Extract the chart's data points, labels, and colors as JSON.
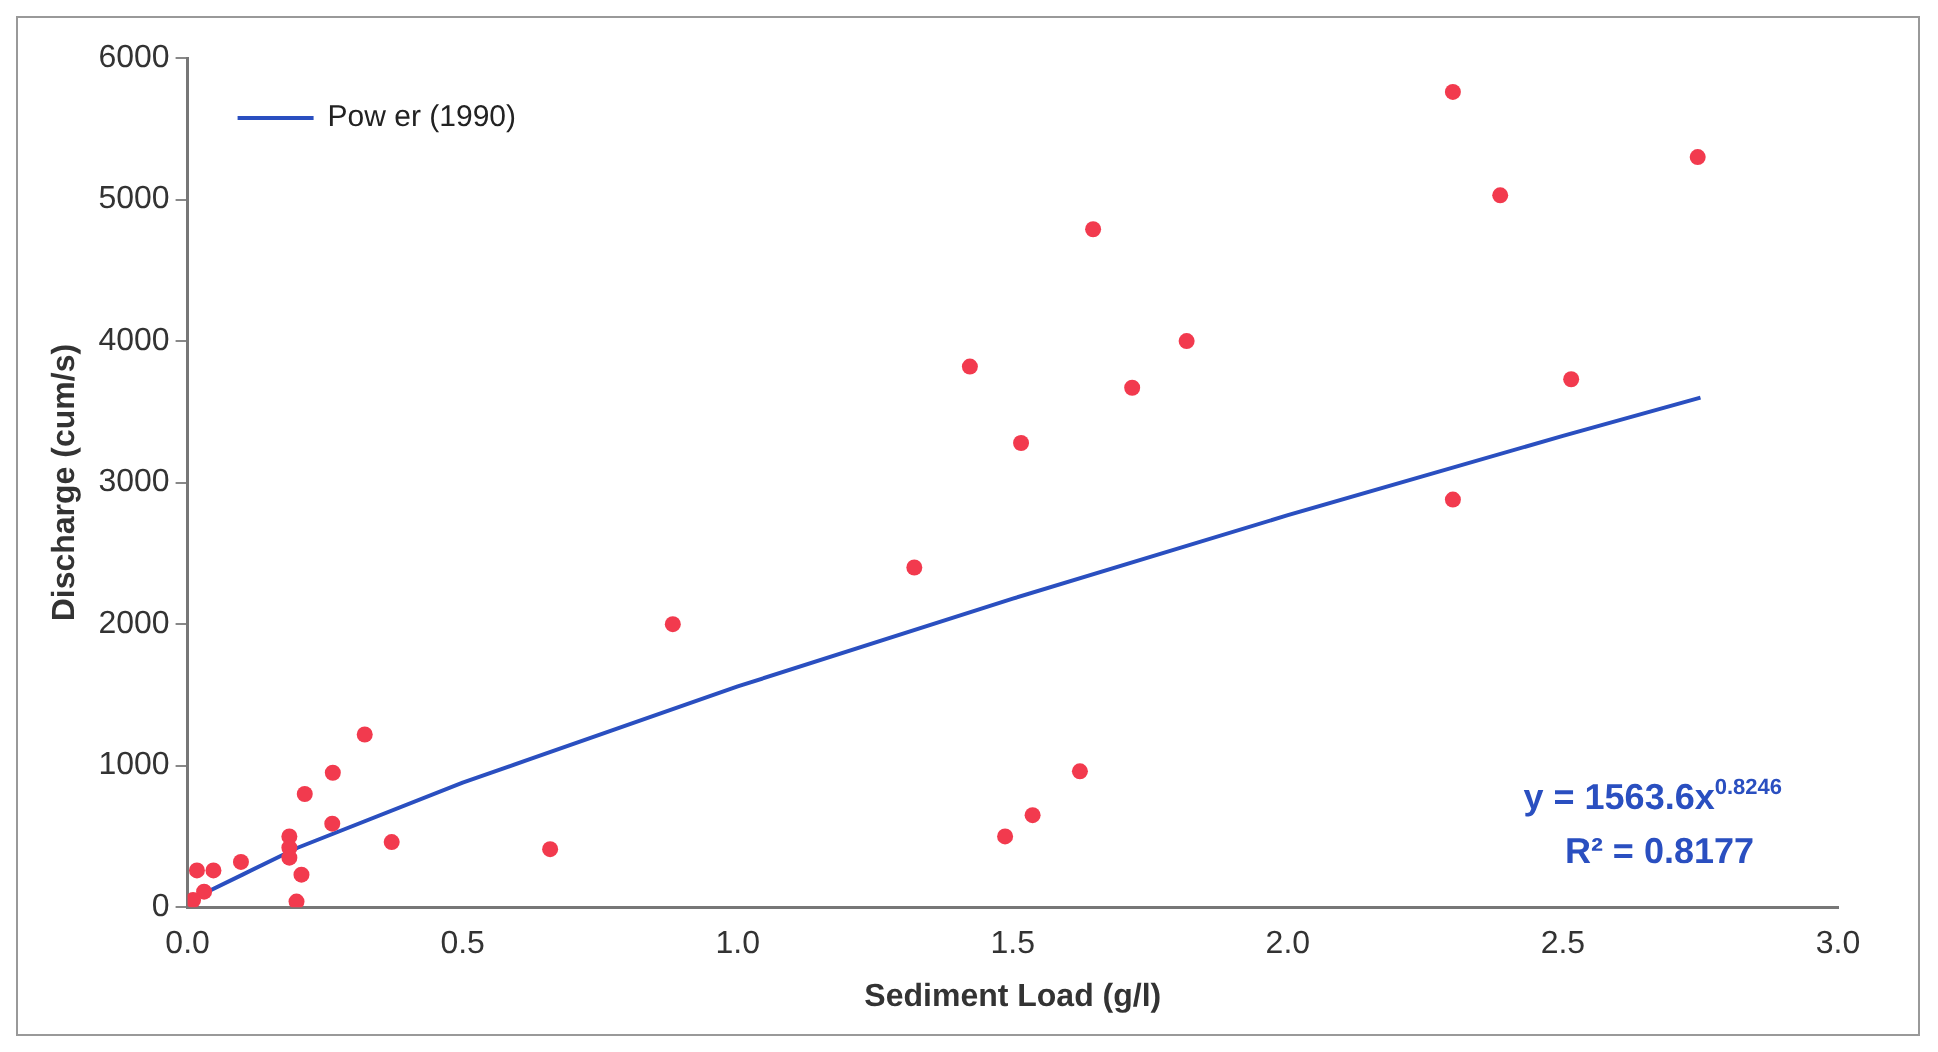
{
  "chart_data": {
    "type": "scatter",
    "xlabel": "Sediment Load (g/l)",
    "ylabel": "Discharge (cum/s)",
    "xlim": [
      0,
      3
    ],
    "xticks": [
      {
        "value": 0,
        "label": "0.0"
      },
      {
        "value": 0.5,
        "label": "0.5"
      },
      {
        "value": 1,
        "label": "1.0"
      },
      {
        "value": 1.5,
        "label": "1.5"
      },
      {
        "value": 2,
        "label": "2.0"
      },
      {
        "value": 2.5,
        "label": "2.5"
      },
      {
        "value": 3,
        "label": "3.0"
      }
    ],
    "ylim": [
      0,
      6000
    ],
    "yticks": [
      0,
      1000,
      2000,
      3000,
      4000,
      5000,
      6000
    ],
    "grid": false,
    "legend": "top left",
    "marker": "circle",
    "series": [
      {
        "type": "scatter",
        "color": "#f23a4e",
        "x": [
          0.017,
          0.047,
          0.03,
          0.01,
          0.097,
          0.185,
          0.185,
          0.185,
          0.207,
          0.198,
          0.213,
          0.264,
          0.263,
          0.322,
          0.371,
          0.659,
          0.882,
          1.321,
          1.422,
          1.515,
          1.717,
          1.816,
          1.622,
          1.536,
          1.486,
          1.646,
          2.3,
          2.386,
          2.745,
          2.515,
          2.3
        ],
        "values": [
          260,
          260,
          110,
          50,
          320,
          500,
          420,
          350,
          230,
          40,
          800,
          950,
          590,
          1220,
          460,
          410,
          2000,
          2400,
          3820,
          3280,
          3670,
          4000,
          960,
          650,
          500,
          4790,
          5760,
          5030,
          5300,
          3730,
          2880
        ]
      },
      {
        "type": "line",
        "name": "Pow er (1990)",
        "color": "#2a4fc0",
        "marker": "none",
        "line_style": "solid",
        "x": [
          0.01,
          0.1,
          0.2,
          0.5,
          1.0,
          1.5,
          2.0,
          2.5,
          2.75
        ],
        "values": [
          60,
          230,
          420,
          880,
          1560,
          2180,
          2770,
          3330,
          3600
        ]
      }
    ],
    "annotations": [
      "y = 1563.6x$^{0.8246}$",
      "R² = 0.8177"
    ]
  }
}
